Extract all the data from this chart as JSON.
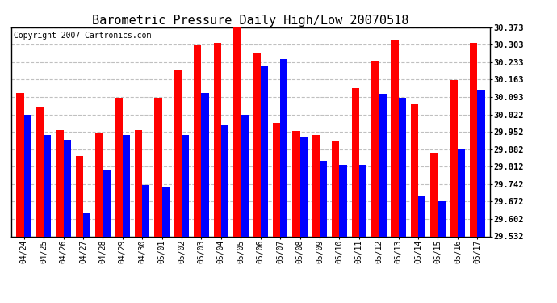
{
  "title": "Barometric Pressure Daily High/Low 20070518",
  "copyright": "Copyright 2007 Cartronics.com",
  "dates": [
    "04/24",
    "04/25",
    "04/26",
    "04/27",
    "04/28",
    "04/29",
    "04/30",
    "05/01",
    "05/02",
    "05/03",
    "05/04",
    "05/05",
    "05/06",
    "05/07",
    "05/08",
    "05/09",
    "05/10",
    "05/11",
    "05/12",
    "05/13",
    "05/14",
    "05/15",
    "05/16",
    "05/17"
  ],
  "highs": [
    30.11,
    30.05,
    29.96,
    29.855,
    29.95,
    30.09,
    29.96,
    30.09,
    30.2,
    30.3,
    30.31,
    30.375,
    30.27,
    29.99,
    29.955,
    29.94,
    29.915,
    30.13,
    30.24,
    30.325,
    30.065,
    29.87,
    30.16,
    30.31
  ],
  "lows": [
    30.02,
    29.94,
    29.92,
    29.625,
    29.8,
    29.94,
    29.74,
    29.73,
    29.94,
    30.11,
    29.98,
    30.02,
    30.215,
    30.245,
    29.93,
    29.835,
    29.82,
    29.82,
    30.105,
    30.09,
    29.695,
    29.675,
    29.88,
    30.12
  ],
  "ylim_min": 29.532,
  "ylim_max": 30.373,
  "yticks": [
    29.532,
    29.602,
    29.672,
    29.742,
    29.812,
    29.882,
    29.952,
    30.022,
    30.093,
    30.163,
    30.233,
    30.303,
    30.373
  ],
  "high_color": "#FF0000",
  "low_color": "#0000FF",
  "background_color": "#FFFFFF",
  "grid_color": "#C0C0C0",
  "title_fontsize": 11,
  "copyright_fontsize": 7
}
